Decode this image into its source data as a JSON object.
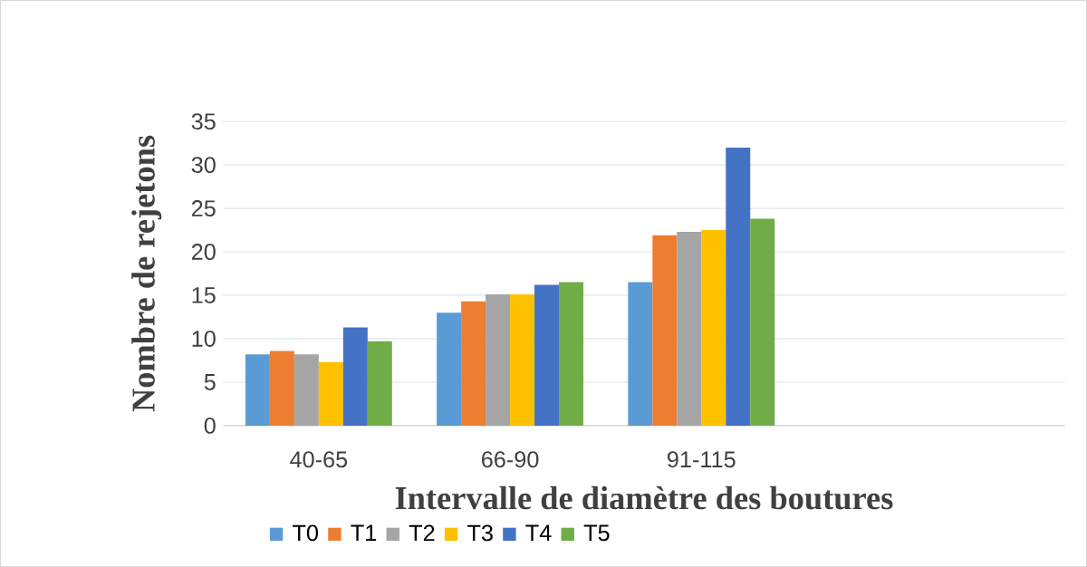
{
  "chart_data": {
    "type": "bar",
    "xlabel": "Intervalle de diamètre des boutures",
    "ylabel": "Nombre de rejetons",
    "categories": [
      "40-65",
      "66-90",
      "91-115"
    ],
    "series": [
      {
        "name": "T0",
        "color": "#5b9bd5",
        "values": [
          8.2,
          13.0,
          16.5
        ]
      },
      {
        "name": "T1",
        "color": "#ed7d31",
        "values": [
          8.6,
          14.3,
          21.9
        ]
      },
      {
        "name": "T2",
        "color": "#a5a5a5",
        "values": [
          8.2,
          15.1,
          22.3
        ]
      },
      {
        "name": "T3",
        "color": "#ffc000",
        "values": [
          7.3,
          15.1,
          22.5
        ]
      },
      {
        "name": "T4",
        "color": "#4472c4",
        "values": [
          11.3,
          16.2,
          32.0
        ]
      },
      {
        "name": "T5",
        "color": "#70ad47",
        "values": [
          9.7,
          16.5,
          23.8
        ]
      }
    ],
    "ylim": [
      0,
      35
    ],
    "yticks": [
      0,
      5,
      10,
      15,
      20,
      25,
      30,
      35
    ],
    "grid": "y",
    "legend": "bottom"
  }
}
